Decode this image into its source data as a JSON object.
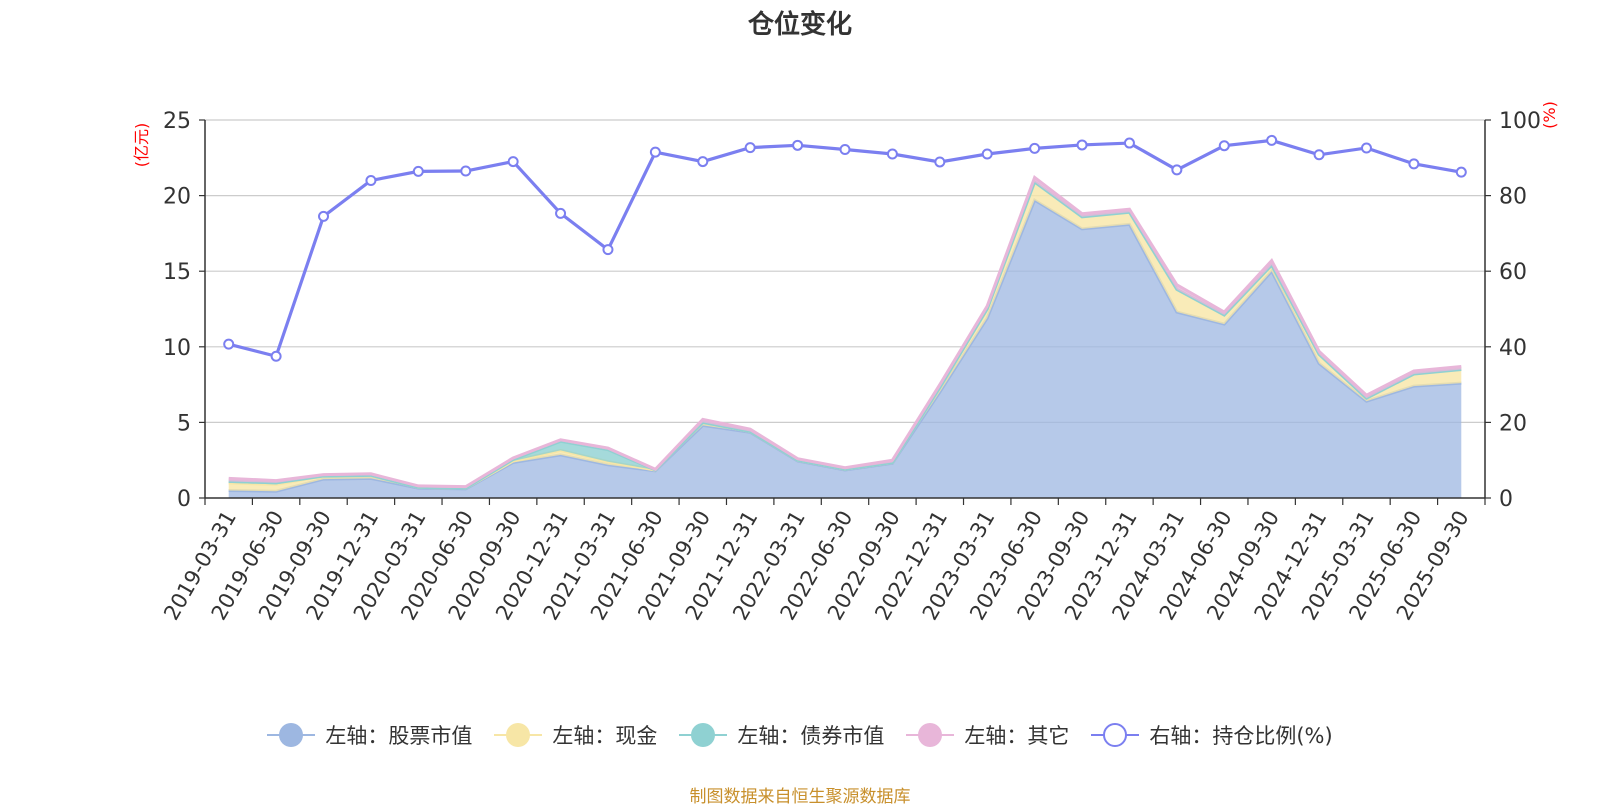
{
  "chart_data": {
    "type": "area",
    "title": "仓位变化",
    "y_left_label": "(亿元)",
    "y_right_label": "(%)",
    "ylim_left": [
      0,
      25
    ],
    "ylim_right": [
      0,
      100
    ],
    "y_left_ticks": [
      "0",
      "5",
      "10",
      "15",
      "20",
      "25"
    ],
    "y_right_ticks": [
      "0",
      "20",
      "40",
      "60",
      "80",
      "100"
    ],
    "grid": true,
    "legend_position": "bottom",
    "stacked": true,
    "x": [
      "2019-03-31",
      "2019-06-30",
      "2019-09-30",
      "2019-12-31",
      "2020-03-31",
      "2020-06-30",
      "2020-09-30",
      "2020-12-31",
      "2021-03-31",
      "2021-06-30",
      "2021-09-30",
      "2021-12-31",
      "2022-03-31",
      "2022-06-30",
      "2022-09-30",
      "2022-12-31",
      "2023-03-31",
      "2023-06-30",
      "2023-09-30",
      "2023-12-31",
      "2024-03-31",
      "2024-06-30",
      "2024-09-30",
      "2024-12-31",
      "2025-03-31",
      "2025-06-30",
      "2025-09-30"
    ],
    "series": [
      {
        "name": "左轴：股票市值",
        "axis": "left",
        "color": "#9db7e1",
        "values": [
          0.5,
          0.45,
          1.25,
          1.3,
          0.65,
          0.6,
          2.35,
          2.85,
          2.2,
          1.8,
          4.8,
          4.35,
          2.45,
          1.85,
          2.3,
          7.0,
          11.9,
          19.7,
          17.8,
          18.1,
          12.3,
          11.5,
          15.0,
          8.9,
          6.4,
          7.4,
          7.6
        ]
      },
      {
        "name": "左轴：现金",
        "axis": "left",
        "color": "#f7e6a6",
        "values": [
          0.5,
          0.45,
          0.2,
          0.2,
          0.05,
          0.05,
          0.1,
          0.3,
          0.2,
          0.05,
          0.2,
          0.05,
          0.05,
          0.05,
          0.05,
          0.3,
          0.6,
          1.2,
          0.8,
          0.8,
          1.5,
          0.6,
          0.4,
          0.6,
          0.2,
          0.8,
          0.9
        ]
      },
      {
        "name": "左轴：债券市值",
        "axis": "left",
        "color": "#8fd1d2",
        "values": [
          0.1,
          0.1,
          0,
          0,
          0,
          0,
          0.1,
          0.6,
          0.8,
          0,
          0,
          0,
          0,
          0,
          0,
          0,
          0,
          0,
          0,
          0,
          0,
          0,
          0,
          0,
          0,
          0,
          0
        ]
      },
      {
        "name": "左轴：其它",
        "axis": "left",
        "color": "#e8b6d9",
        "values": [
          0.2,
          0.15,
          0.1,
          0.1,
          0.1,
          0.1,
          0.1,
          0.1,
          0.1,
          0.05,
          0.2,
          0.15,
          0.1,
          0.1,
          0.15,
          0.2,
          0.2,
          0.3,
          0.2,
          0.2,
          0.3,
          0.2,
          0.3,
          0.2,
          0.2,
          0.2,
          0.2
        ]
      },
      {
        "name": "右轴：持仓比例(%)",
        "axis": "right",
        "color": "#7b7ff0",
        "values": [
          40.7,
          37.5,
          74.5,
          84,
          86.4,
          86.5,
          89,
          75.3,
          65.7,
          91.5,
          89,
          92.7,
          93.3,
          92.2,
          91,
          88.9,
          91,
          92.5,
          93.4,
          93.9,
          86.8,
          93.2,
          94.6,
          90.8,
          92.6,
          88.4,
          86.2
        ]
      }
    ]
  },
  "footer": {
    "source": "制图数据来自恒生聚源数据库"
  }
}
